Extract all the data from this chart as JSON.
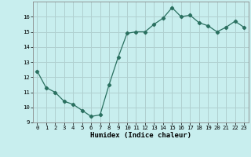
{
  "x": [
    0,
    1,
    2,
    3,
    4,
    5,
    6,
    7,
    8,
    9,
    10,
    11,
    12,
    13,
    14,
    15,
    16,
    17,
    18,
    19,
    20,
    21,
    22,
    23
  ],
  "y": [
    12.4,
    11.3,
    11.0,
    10.4,
    10.2,
    9.8,
    9.4,
    9.5,
    11.5,
    13.3,
    14.9,
    15.0,
    15.0,
    15.5,
    15.9,
    16.6,
    16.0,
    16.1,
    15.6,
    15.4,
    15.0,
    15.3,
    15.7,
    15.3
  ],
  "line_color": "#2a7060",
  "marker": "D",
  "marker_size": 2.2,
  "bg_color": "#c8eeee",
  "grid_color": "#b0d0d0",
  "xlabel": "Humidex (Indice chaleur)",
  "xlim": [
    -0.5,
    23.5
  ],
  "ylim": [
    9,
    17
  ],
  "yticks": [
    9,
    10,
    11,
    12,
    13,
    14,
    15,
    16
  ],
  "xticks": [
    0,
    1,
    2,
    3,
    4,
    5,
    6,
    7,
    8,
    9,
    10,
    11,
    12,
    13,
    14,
    15,
    16,
    17,
    18,
    19,
    20,
    21,
    22,
    23
  ],
  "tick_fontsize": 5.2,
  "label_fontsize": 6.5
}
